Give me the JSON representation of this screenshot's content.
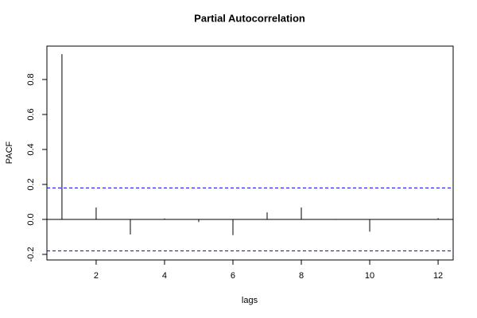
{
  "chart_data": {
    "type": "stem",
    "title": "Partial Autocorrelation",
    "xlabel": "lags",
    "ylabel": "PACF",
    "x": [
      1,
      2,
      3,
      4,
      5,
      6,
      7,
      8,
      9,
      10,
      11,
      12
    ],
    "values": [
      0.945,
      0.068,
      -0.086,
      0.005,
      -0.015,
      -0.09,
      0.04,
      0.068,
      -0.003,
      -0.07,
      -0.002,
      0.007
    ],
    "color": "#000000",
    "conf_limits": [
      0.18,
      -0.18
    ],
    "conf_color": "#0000ff",
    "xlim": [
      0.56,
      12.44
    ],
    "xticks": [
      2,
      4,
      6,
      8,
      10,
      12
    ],
    "ylim": [
      -0.232,
      0.991
    ],
    "yticks": [
      -0.2,
      {
        "value": 0,
        "label": "0.0"
      },
      0.2,
      0.4,
      0.6,
      0.8
    ]
  }
}
